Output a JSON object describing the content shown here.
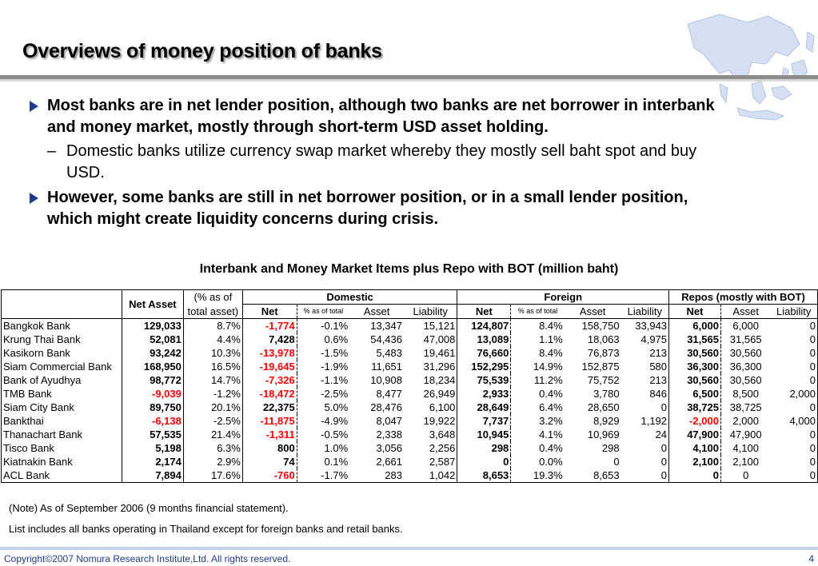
{
  "title": "Overviews of money position of banks",
  "bullets": {
    "b1": "Most banks are in net lender position, although two banks are net borrower in interbank and money market, mostly through short-term USD asset holding.",
    "b1_sub": "Domestic banks utilize currency swap market whereby they mostly sell baht spot and buy USD.",
    "b1_sub_dash": "–",
    "b2": "However, some banks are still in net borrower position, or in a small lender position, which might create liquidity concerns during crisis."
  },
  "table": {
    "caption": "Interbank and Money Market Items plus Repo with BOT (million baht)",
    "headers": {
      "net_asset": "Net Asset",
      "pct_total_1": "(% as of",
      "pct_total_2": "total asset)",
      "domestic": "Domestic",
      "foreign": "Foreign",
      "repos": "Repos (mostly with BOT)",
      "net": "Net",
      "pct_as_of_total": "% as of total",
      "asset": "Asset",
      "liability": "Liability"
    },
    "rows": [
      {
        "bank": "Bangkok Bank",
        "net_asset": "129,033",
        "pct": "8.7%",
        "d_net": "-1,774",
        "d_pct": "-0.1%",
        "d_asset": "13,347",
        "d_liab": "15,121",
        "f_net": "124,807",
        "f_pct": "8.4%",
        "f_asset": "158,750",
        "f_liab": "33,943",
        "r_net": "6,000",
        "r_asset": "6,000",
        "r_liab": "0"
      },
      {
        "bank": "Krung Thai Bank",
        "net_asset": "52,081",
        "pct": "4.4%",
        "d_net": "7,428",
        "d_pct": "0.6%",
        "d_asset": "54,436",
        "d_liab": "47,008",
        "f_net": "13,089",
        "f_pct": "1.1%",
        "f_asset": "18,063",
        "f_liab": "4,975",
        "r_net": "31,565",
        "r_asset": "31,565",
        "r_liab": "0"
      },
      {
        "bank": "Kasikorn Bank",
        "net_asset": "93,242",
        "pct": "10.3%",
        "d_net": "-13,978",
        "d_pct": "-1.5%",
        "d_asset": "5,483",
        "d_liab": "19,461",
        "f_net": "76,660",
        "f_pct": "8.4%",
        "f_asset": "76,873",
        "f_liab": "213",
        "r_net": "30,560",
        "r_asset": "30,560",
        "r_liab": "0"
      },
      {
        "bank": "Siam Commercial Bank",
        "net_asset": "168,950",
        "pct": "16.5%",
        "d_net": "-19,645",
        "d_pct": "-1.9%",
        "d_asset": "11,651",
        "d_liab": "31,296",
        "f_net": "152,295",
        "f_pct": "14.9%",
        "f_asset": "152,875",
        "f_liab": "580",
        "r_net": "36,300",
        "r_asset": "36,300",
        "r_liab": "0"
      },
      {
        "bank": "Bank of Ayudhya",
        "net_asset": "98,772",
        "pct": "14.7%",
        "d_net": "-7,326",
        "d_pct": "-1.1%",
        "d_asset": "10,908",
        "d_liab": "18,234",
        "f_net": "75,539",
        "f_pct": "11.2%",
        "f_asset": "75,752",
        "f_liab": "213",
        "r_net": "30,560",
        "r_asset": "30,560",
        "r_liab": "0"
      },
      {
        "bank": "TMB Bank",
        "net_asset": "-9,039",
        "pct": "-1.2%",
        "d_net": "-18,472",
        "d_pct": "-2.5%",
        "d_asset": "8,477",
        "d_liab": "26,949",
        "f_net": "2,933",
        "f_pct": "0.4%",
        "f_asset": "3,780",
        "f_liab": "846",
        "r_net": "6,500",
        "r_asset": "8,500",
        "r_liab": "2,000"
      },
      {
        "bank": "Siam City Bank",
        "net_asset": "89,750",
        "pct": "20.1%",
        "d_net": "22,375",
        "d_pct": "5.0%",
        "d_asset": "28,476",
        "d_liab": "6,100",
        "f_net": "28,649",
        "f_pct": "6.4%",
        "f_asset": "28,650",
        "f_liab": "0",
        "r_net": "38,725",
        "r_asset": "38,725",
        "r_liab": "0"
      },
      {
        "bank": "Bankthai",
        "net_asset": "-6,138",
        "pct": "-2.5%",
        "d_net": "-11,875",
        "d_pct": "-4.9%",
        "d_asset": "8,047",
        "d_liab": "19,922",
        "f_net": "7,737",
        "f_pct": "3.2%",
        "f_asset": "8,929",
        "f_liab": "1,192",
        "r_net": "-2,000",
        "r_asset": "2,000",
        "r_liab": "4,000"
      },
      {
        "bank": "Thanachart Bank",
        "net_asset": "57,535",
        "pct": "21.4%",
        "d_net": "-1,311",
        "d_pct": "-0.5%",
        "d_asset": "2,338",
        "d_liab": "3,648",
        "f_net": "10,945",
        "f_pct": "4.1%",
        "f_asset": "10,969",
        "f_liab": "24",
        "r_net": "47,900",
        "r_asset": "47,900",
        "r_liab": "0"
      },
      {
        "bank": "Tisco Bank",
        "net_asset": "5,198",
        "pct": "6.3%",
        "d_net": "800",
        "d_pct": "1.0%",
        "d_asset": "3,056",
        "d_liab": "2,256",
        "f_net": "298",
        "f_pct": "0.4%",
        "f_asset": "298",
        "f_liab": "0",
        "r_net": "4,100",
        "r_asset": "4,100",
        "r_liab": "0"
      },
      {
        "bank": "Kiatnakin Bank",
        "net_asset": "2,174",
        "pct": "2.9%",
        "d_net": "74",
        "d_pct": "0.1%",
        "d_asset": "2,661",
        "d_liab": "2,587",
        "f_net": "0",
        "f_pct": "0.0%",
        "f_asset": "0",
        "f_liab": "0",
        "r_net": "2,100",
        "r_asset": "2,100",
        "r_liab": "0"
      },
      {
        "bank": "ACL Bank",
        "net_asset": "7,894",
        "pct": "17.6%",
        "d_net": "-760",
        "d_pct": "-1.7%",
        "d_asset": "283",
        "d_liab": "1,042",
        "f_net": "8,653",
        "f_pct": "19.3%",
        "f_asset": "8,653",
        "f_liab": "0",
        "r_net": "0",
        "r_asset": "0",
        "r_liab": "0"
      }
    ]
  },
  "notes": {
    "note1": "(Note) As of September 2006 (9 months financial statement).",
    "note2": "List includes all banks operating in Thailand except for foreign banks and retail banks."
  },
  "footer": {
    "copyright": "Copyright©2007 Nomura Research Institute,Ltd. All rights reserved.",
    "page": "4"
  },
  "colors": {
    "accent": "#1f3c8c",
    "negative": "#ff0000",
    "map": "#c8d6ee"
  }
}
